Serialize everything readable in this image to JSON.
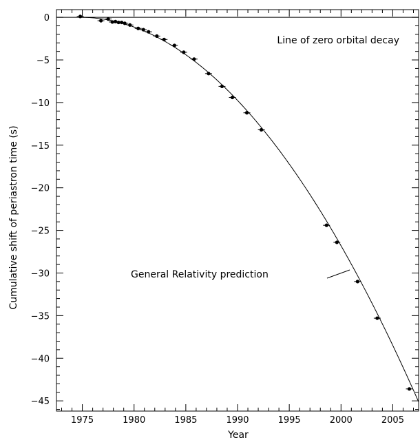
{
  "chart_data": {
    "type": "scatter",
    "xlabel": "Year",
    "ylabel": "Cumulative shift of periastron time (s)",
    "xlim": [
      1972.5,
      2007.5
    ],
    "ylim": [
      -46.2,
      0.9
    ],
    "x_ticks": [
      1975,
      1980,
      1985,
      1990,
      1995,
      2000,
      2005
    ],
    "y_ticks": [
      0,
      -5,
      -10,
      -15,
      -20,
      -25,
      -30,
      -35,
      -40,
      -45
    ],
    "zero_line": {
      "y": 0,
      "label": "Line of zero orbital decay"
    },
    "curve": {
      "label": "General Relativity prediction",
      "t0": 1974.8,
      "coef": -0.0422
    },
    "series": [
      {
        "points": [
          {
            "x": 1974.8,
            "y": 0.1
          },
          {
            "x": 1976.8,
            "y": -0.4
          },
          {
            "x": 1977.5,
            "y": -0.2
          },
          {
            "x": 1977.9,
            "y": -0.55
          },
          {
            "x": 1978.2,
            "y": -0.5
          },
          {
            "x": 1978.5,
            "y": -0.6
          },
          {
            "x": 1978.8,
            "y": -0.6
          },
          {
            "x": 1979.1,
            "y": -0.7
          },
          {
            "x": 1979.6,
            "y": -0.9
          },
          {
            "x": 1980.4,
            "y": -1.3
          },
          {
            "x": 1980.9,
            "y": -1.45
          },
          {
            "x": 1981.4,
            "y": -1.7
          },
          {
            "x": 1982.2,
            "y": -2.2
          },
          {
            "x": 1982.9,
            "y": -2.6
          },
          {
            "x": 1983.9,
            "y": -3.3
          },
          {
            "x": 1984.8,
            "y": -4.1
          },
          {
            "x": 1985.8,
            "y": -4.9
          },
          {
            "x": 1987.2,
            "y": -6.6
          },
          {
            "x": 1988.5,
            "y": -8.1
          },
          {
            "x": 1989.5,
            "y": -9.4
          },
          {
            "x": 1990.9,
            "y": -11.2
          },
          {
            "x": 1992.3,
            "y": -13.2
          },
          {
            "x": 1998.6,
            "y": -24.4
          },
          {
            "x": 1999.6,
            "y": -26.4
          },
          {
            "x": 2001.6,
            "y": -31.0
          },
          {
            "x": 2003.5,
            "y": -35.3
          },
          {
            "x": 2006.6,
            "y": -43.6
          }
        ]
      }
    ]
  }
}
